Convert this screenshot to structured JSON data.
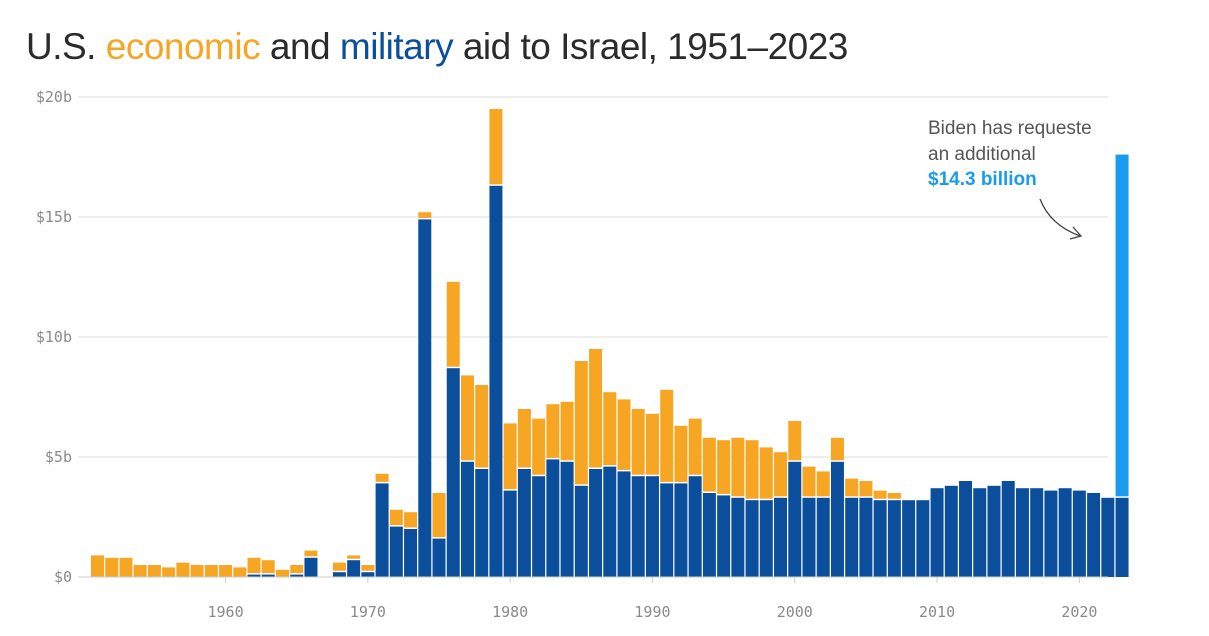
{
  "title": {
    "prefix": "U.S. ",
    "economic": "economic",
    "middle": " and ",
    "military": "military",
    "suffix": " aid to Israel, 1951–2023"
  },
  "colors": {
    "economic": "#f6a623",
    "military": "#0b4f9c",
    "requested": "#1a9bef",
    "grid": "#dddddd",
    "text": "#2b2b2b"
  },
  "annotation": {
    "line1": "Biden has requeste",
    "line2": "an additional",
    "line3": "$14.3 billion"
  },
  "chart_data": {
    "type": "bar",
    "stacked": true,
    "units": "billions of US dollars",
    "ylim": [
      0,
      20
    ],
    "yticks": [
      0,
      5,
      10,
      15,
      20
    ],
    "ytick_labels": [
      "$0",
      "$5b",
      "$10b",
      "$15b",
      "$20b"
    ],
    "xticks": [
      1960,
      1970,
      1980,
      1990,
      2000,
      2010,
      2020
    ],
    "xlim": [
      1951,
      2023
    ],
    "grid": "horizontal",
    "years": [
      1951,
      1952,
      1953,
      1954,
      1955,
      1956,
      1957,
      1958,
      1959,
      1960,
      1961,
      1962,
      1963,
      1964,
      1965,
      1966,
      1967,
      1968,
      1969,
      1970,
      1971,
      1972,
      1973,
      1974,
      1975,
      1976,
      1977,
      1978,
      1979,
      1980,
      1981,
      1982,
      1983,
      1984,
      1985,
      1986,
      1987,
      1988,
      1989,
      1990,
      1991,
      1992,
      1993,
      1994,
      1995,
      1996,
      1997,
      1998,
      1999,
      2000,
      2001,
      2002,
      2003,
      2004,
      2005,
      2006,
      2007,
      2008,
      2009,
      2010,
      2011,
      2012,
      2013,
      2014,
      2015,
      2016,
      2017,
      2018,
      2019,
      2020,
      2021,
      2022,
      2023
    ],
    "series": [
      {
        "name": "military",
        "values": [
          0,
          0,
          0,
          0,
          0,
          0,
          0,
          0,
          0,
          0,
          0,
          0.1,
          0.1,
          0,
          0.1,
          0.8,
          0,
          0.2,
          0.7,
          0.2,
          3.9,
          2.1,
          2.0,
          14.9,
          1.6,
          8.7,
          4.8,
          4.5,
          16.3,
          3.6,
          4.5,
          4.2,
          4.9,
          4.8,
          3.8,
          4.5,
          4.6,
          4.4,
          4.2,
          4.2,
          3.9,
          3.9,
          4.2,
          3.5,
          3.4,
          3.3,
          3.2,
          3.2,
          3.3,
          4.8,
          3.3,
          3.3,
          4.8,
          3.3,
          3.3,
          3.2,
          3.2,
          3.2,
          3.2,
          3.7,
          3.8,
          4.0,
          3.7,
          3.8,
          4.0,
          3.7,
          3.7,
          3.6,
          3.7,
          3.6,
          3.5,
          3.3,
          3.3
        ]
      },
      {
        "name": "economic",
        "values": [
          0.9,
          0.8,
          0.8,
          0.5,
          0.5,
          0.4,
          0.6,
          0.5,
          0.5,
          0.5,
          0.4,
          0.7,
          0.6,
          0.3,
          0.4,
          0.3,
          0,
          0.4,
          0.2,
          0.3,
          0.4,
          0.7,
          0.7,
          0.3,
          1.9,
          3.6,
          3.6,
          3.5,
          3.2,
          2.8,
          2.5,
          2.4,
          2.3,
          2.5,
          5.2,
          5.0,
          3.1,
          3.0,
          2.8,
          2.6,
          3.9,
          2.4,
          2.4,
          2.3,
          2.3,
          2.5,
          2.5,
          2.2,
          1.9,
          1.7,
          1.3,
          1.1,
          1.0,
          0.8,
          0.7,
          0.4,
          0.3,
          0,
          0,
          0,
          0,
          0,
          0,
          0,
          0,
          0,
          0,
          0,
          0,
          0,
          0,
          0,
          0
        ]
      }
    ],
    "requested": {
      "year": 2023,
      "value": 14.3
    }
  }
}
